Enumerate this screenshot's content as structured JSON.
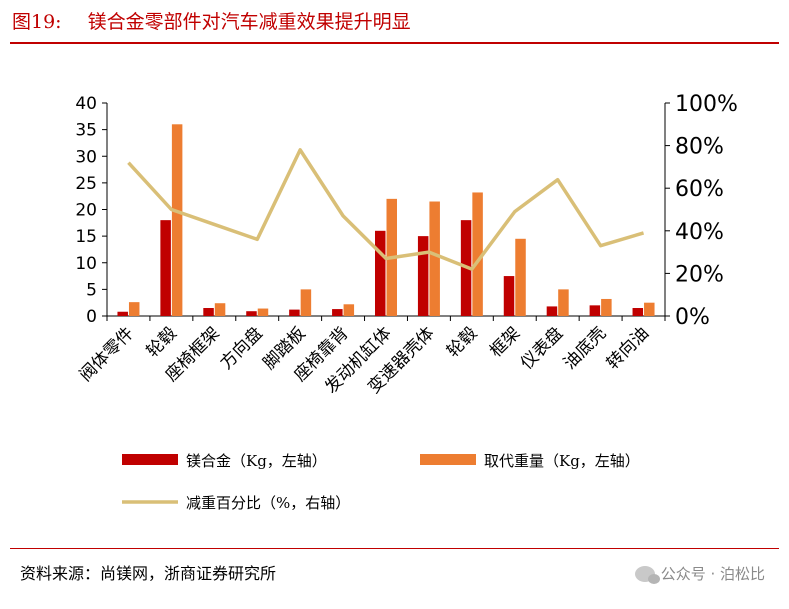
{
  "header": {
    "figure_no": "图19:",
    "title": "镁合金零部件对汽车减重效果提升明显"
  },
  "footer": {
    "source": "资料来源：尚镁网，浙商证券研究所",
    "watermark": "公众号 · 泊松比"
  },
  "colors": {
    "accent": "#c00000",
    "mg": "#c00000",
    "replaced": "#ed7d31",
    "pct": "#d9bf77"
  },
  "chart_data": {
    "type": "bar",
    "categories": [
      "阀体零件",
      "轮毂",
      "座椅框架",
      "方向盘",
      "脚踏板",
      "座椅靠背",
      "发动机缸体",
      "变速器壳体",
      "轮毂",
      "框架",
      "仪表盘",
      "油底壳",
      "转向油"
    ],
    "series": [
      {
        "name": "镁合金（Kg，左轴）",
        "type": "bar",
        "axis": "left",
        "values": [
          0.8,
          18.0,
          1.5,
          0.9,
          1.2,
          1.3,
          16.0,
          15.0,
          18.0,
          7.5,
          1.8,
          2.0,
          1.5
        ]
      },
      {
        "name": "取代重量（Kg，左轴）",
        "type": "bar",
        "axis": "left",
        "values": [
          2.6,
          36.0,
          2.4,
          1.4,
          5.0,
          2.2,
          22.0,
          21.5,
          23.2,
          14.5,
          5.0,
          3.2,
          2.5
        ]
      },
      {
        "name": "减重百分比（%，右轴）",
        "type": "line",
        "axis": "right",
        "values": [
          72,
          50,
          43,
          36,
          78,
          47,
          27,
          30,
          22,
          49,
          64,
          33,
          39
        ]
      }
    ],
    "y_left": {
      "min": 0,
      "max": 40,
      "ticks": [
        "0",
        "5",
        "10",
        "15",
        "20",
        "25",
        "30",
        "35",
        "40"
      ]
    },
    "y_right": {
      "min": 0,
      "max": 100,
      "ticks": [
        "0%",
        "20%",
        "40%",
        "60%",
        "80%",
        "100%"
      ]
    },
    "legend_position": "bottom"
  }
}
